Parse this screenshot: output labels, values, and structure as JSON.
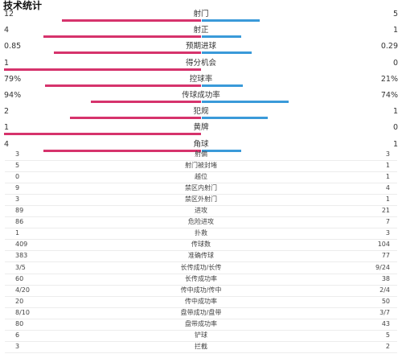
{
  "title": "技术统计",
  "colors": {
    "home": "#d6336c",
    "away": "#3a9ad9"
  },
  "bar_stats": [
    {
      "name": "射门",
      "home": "12",
      "away": "5",
      "home_frac": 0.706,
      "away_frac": 0.294
    },
    {
      "name": "射正",
      "home": "4",
      "away": "1",
      "home_frac": 0.8,
      "away_frac": 0.2
    },
    {
      "name": "预期进球",
      "home": "0.85",
      "away": "0.29",
      "home_frac": 0.746,
      "away_frac": 0.254
    },
    {
      "name": "得分机会",
      "home": "1",
      "away": "0",
      "home_frac": 1.0,
      "away_frac": 0.0
    },
    {
      "name": "控球率",
      "home": "79%",
      "away": "21%",
      "home_frac": 0.79,
      "away_frac": 0.21
    },
    {
      "name": "传球成功率",
      "home": "94%",
      "away": "74%",
      "home_frac": 0.56,
      "away_frac": 0.44
    },
    {
      "name": "犯规",
      "home": "2",
      "away": "1",
      "home_frac": 0.667,
      "away_frac": 0.333
    },
    {
      "name": "黄牌",
      "home": "1",
      "away": "0",
      "home_frac": 1.0,
      "away_frac": 0.0
    },
    {
      "name": "角球",
      "home": "4",
      "away": "1",
      "home_frac": 0.8,
      "away_frac": 0.2
    }
  ],
  "table_stats": [
    {
      "name": "射偏",
      "home": "3",
      "away": "3"
    },
    {
      "name": "射门被封堵",
      "home": "5",
      "away": "1"
    },
    {
      "name": "越位",
      "home": "0",
      "away": "1"
    },
    {
      "name": "禁区内射门",
      "home": "9",
      "away": "4"
    },
    {
      "name": "禁区外射门",
      "home": "3",
      "away": "1"
    },
    {
      "name": "进攻",
      "home": "89",
      "away": "21"
    },
    {
      "name": "危险进攻",
      "home": "86",
      "away": "7"
    },
    {
      "name": "扑救",
      "home": "1",
      "away": "3"
    },
    {
      "name": "传球数",
      "home": "409",
      "away": "104"
    },
    {
      "name": "准确传球",
      "home": "383",
      "away": "77"
    },
    {
      "name": "长传成功/长传",
      "home": "3/5",
      "away": "9/24"
    },
    {
      "name": "长传成功率",
      "home": "60",
      "away": "38"
    },
    {
      "name": "传中成功/传中",
      "home": "4/20",
      "away": "2/4"
    },
    {
      "name": "传中成功率",
      "home": "20",
      "away": "50"
    },
    {
      "name": "盘带成功/盘带",
      "home": "8/10",
      "away": "3/7"
    },
    {
      "name": "盘带成功率",
      "home": "80",
      "away": "43"
    },
    {
      "name": "铲球",
      "home": "6",
      "away": "5"
    },
    {
      "name": "拦截",
      "home": "3",
      "away": "2"
    }
  ]
}
